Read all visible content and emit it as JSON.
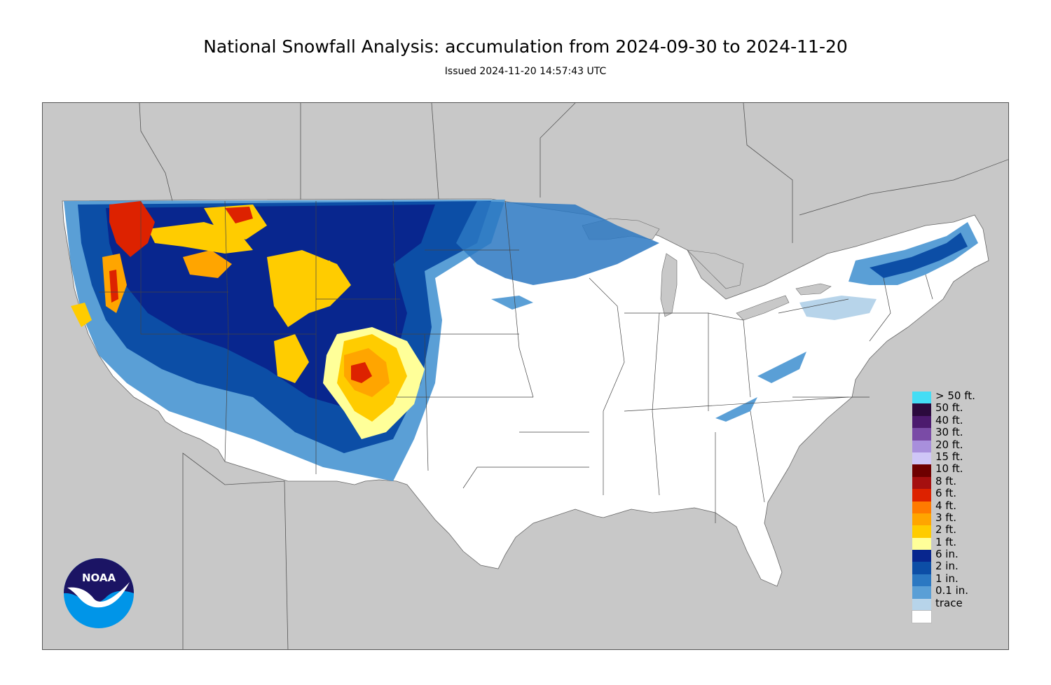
{
  "header": {
    "title": "National Snowfall Analysis: accumulation from 2024-09-30 to 2024-11-20",
    "subtitle": "Issued 2024-11-20 14:57:43 UTC"
  },
  "map": {
    "background_color": "#c8c8c8",
    "land_color": "#ffffff",
    "border_color": "#555555"
  },
  "legend": {
    "items": [
      {
        "label": "> 50 ft.",
        "color": "#44ddf5"
      },
      {
        "label": "50 ft.",
        "color": "#2b0a3d"
      },
      {
        "label": "40 ft.",
        "color": "#4c1a6e"
      },
      {
        "label": "30 ft.",
        "color": "#7a4ba6"
      },
      {
        "label": "20 ft.",
        "color": "#a88fdc"
      },
      {
        "label": "15 ft.",
        "color": "#cfc6f7"
      },
      {
        "label": "10 ft.",
        "color": "#6e0000"
      },
      {
        "label": "8 ft.",
        "color": "#a50f0f"
      },
      {
        "label": "6 ft.",
        "color": "#dd2200"
      },
      {
        "label": "4 ft.",
        "color": "#ff7a00"
      },
      {
        "label": "3 ft.",
        "color": "#ffa500"
      },
      {
        "label": "2 ft.",
        "color": "#ffcc00"
      },
      {
        "label": "1 ft.",
        "color": "#ffff99"
      },
      {
        "label": "6 in.",
        "color": "#08268e"
      },
      {
        "label": "2 in.",
        "color": "#0c4ea6"
      },
      {
        "label": "1 in.",
        "color": "#2b78c2"
      },
      {
        "label": "0.1 in.",
        "color": "#5a9fd6"
      },
      {
        "label": "trace",
        "color": "#b7d4ea"
      },
      {
        "label": "",
        "color": "#ffffff"
      }
    ]
  },
  "logo": {
    "text": "NOAA",
    "dark_color": "#1b1464",
    "light_color": "#0095e8"
  }
}
